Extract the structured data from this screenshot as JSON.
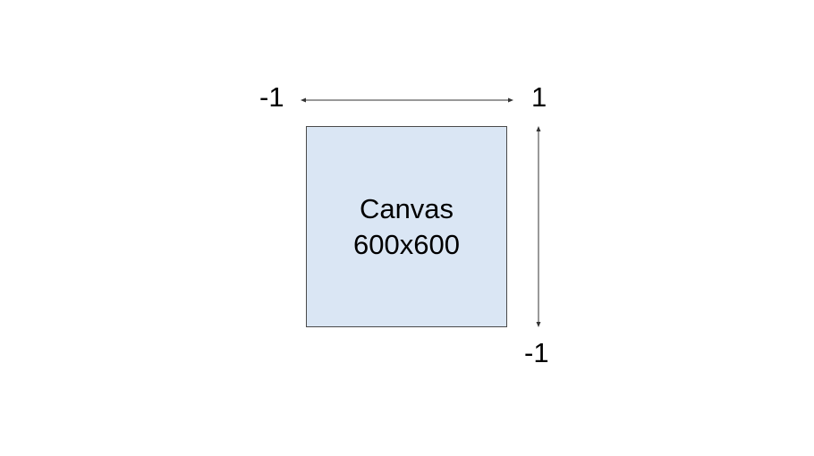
{
  "diagram": {
    "x_axis": {
      "min_label": "-1",
      "max_label": "1"
    },
    "y_axis": {
      "max_label": "1",
      "min_label": "-1"
    },
    "canvas": {
      "title": "Canvas",
      "size": "600x600",
      "fill_color": "#dae6f4",
      "border_color": "#4a4a4a"
    },
    "arrow_color": "#333333"
  }
}
